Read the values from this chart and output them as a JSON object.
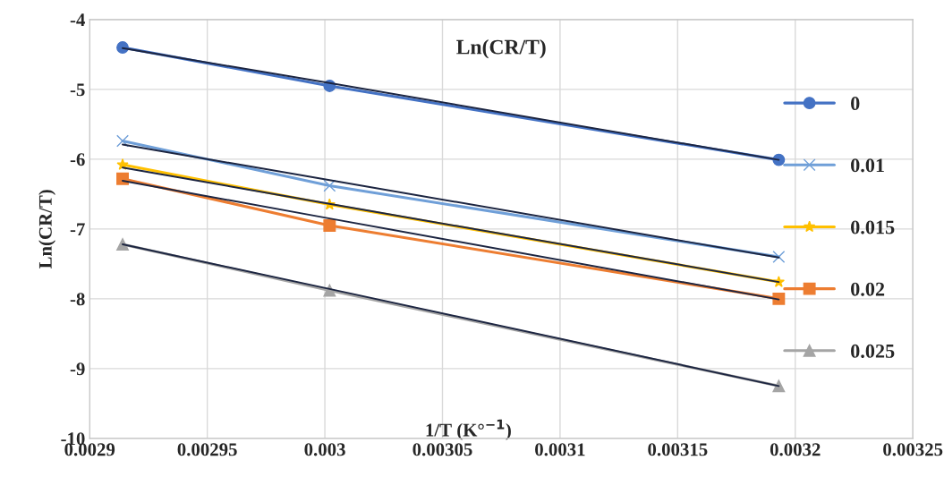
{
  "chart_data": {
    "type": "line",
    "title": "Ln(CR/T)",
    "xlabel": "1/T (K°$^{−1}$)",
    "ylabel": "Ln(CR/T)",
    "x": [
      0.002914,
      0.003002,
      0.003193
    ],
    "series": [
      {
        "name": "0",
        "color": "#4472c4",
        "marker": "circle",
        "values": [
          -4.4,
          -4.95,
          -6.01
        ]
      },
      {
        "name": "0.01",
        "color": "#6f9fd8",
        "marker": "cross",
        "values": [
          -5.74,
          -6.38,
          -7.4
        ]
      },
      {
        "name": "0.015",
        "color": "#ffc000",
        "marker": "star",
        "values": [
          -6.08,
          -6.65,
          -7.76
        ]
      },
      {
        "name": "0.02",
        "color": "#ed7d31",
        "marker": "square",
        "values": [
          -6.28,
          -6.95,
          -8.0
        ]
      },
      {
        "name": "0.025",
        "color": "#a5a5a5",
        "marker": "triangle",
        "values": [
          -7.22,
          -7.88,
          -9.25
        ]
      },
      {
        "type": "line",
        "color": "#1c2541",
        "marker": "none",
        "values": [
          -4.41,
          -4.91,
          -6.01
        ]
      },
      {
        "type": "line",
        "color": "#1c2541",
        "marker": "none",
        "values": [
          -5.79,
          -6.3,
          -7.41
        ]
      },
      {
        "type": "line",
        "color": "#1c2541",
        "marker": "none",
        "values": [
          -6.12,
          -6.64,
          -7.76
        ]
      },
      {
        "type": "line",
        "color": "#1c2541",
        "marker": "none",
        "values": [
          -6.31,
          -6.85,
          -8.01
        ]
      },
      {
        "type": "line",
        "color": "#1c2541",
        "marker": "none",
        "values": [
          -7.22,
          -7.86,
          -9.25
        ]
      }
    ],
    "xlim": [
      0.0029,
      0.00325
    ],
    "xticks": [
      0.0029,
      0.00295,
      0.003,
      0.00305,
      0.0031,
      0.00315,
      0.0032,
      0.00325
    ],
    "ylim": [
      -10,
      -4
    ],
    "yticks": [
      -10,
      -9,
      -8,
      -7,
      -6,
      -5,
      -4
    ],
    "grid": true,
    "legend": "right"
  }
}
